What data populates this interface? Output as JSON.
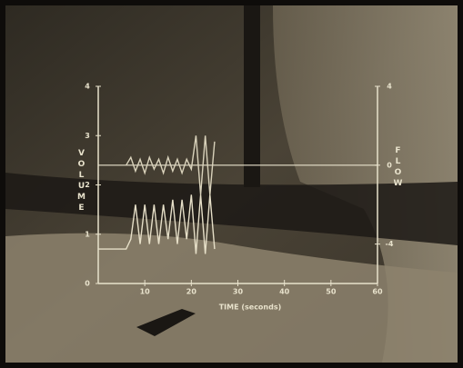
{
  "chart_data": {
    "type": "line",
    "xlabel": "TIME (seconds)",
    "ylabel": "VOLUME",
    "y2label": "FLOW",
    "x": [
      0,
      1,
      2,
      3,
      4,
      5,
      6,
      7,
      8,
      9,
      10,
      11,
      12,
      13,
      14,
      15,
      16,
      17,
      18,
      19,
      20,
      21,
      22,
      23,
      24,
      25
    ],
    "series": [
      {
        "name": "VOLUME",
        "color": "#e6dfc8",
        "values": [
          0.7,
          0.7,
          0.7,
          0.7,
          0.7,
          0.7,
          0.7,
          0.9,
          1.6,
          0.8,
          1.6,
          0.8,
          1.6,
          0.8,
          1.6,
          0.9,
          1.7,
          0.8,
          1.7,
          0.9,
          1.8,
          0.6,
          1.8,
          0.6,
          1.8,
          0.7
        ]
      },
      {
        "name": "FLOW",
        "color": "#d9d2bb",
        "axis": "y2",
        "values": [
          null,
          null,
          null,
          null,
          null,
          null,
          0,
          0.4,
          -0.3,
          0.3,
          -0.4,
          0.4,
          -0.2,
          0.3,
          -0.4,
          0.4,
          -0.3,
          0.3,
          -0.4,
          0.3,
          -0.2,
          1.5,
          -1.5,
          1.5,
          -1.5,
          1.2
        ]
      }
    ],
    "xlim": [
      0,
      60
    ],
    "xticks": [
      10,
      20,
      30,
      40,
      50,
      60
    ],
    "ylim": [
      0,
      4
    ],
    "yticks": [
      0,
      1,
      2,
      3,
      4
    ],
    "y2lim": [
      -6,
      4
    ],
    "y2ticks": [
      -4,
      0,
      4
    ]
  }
}
